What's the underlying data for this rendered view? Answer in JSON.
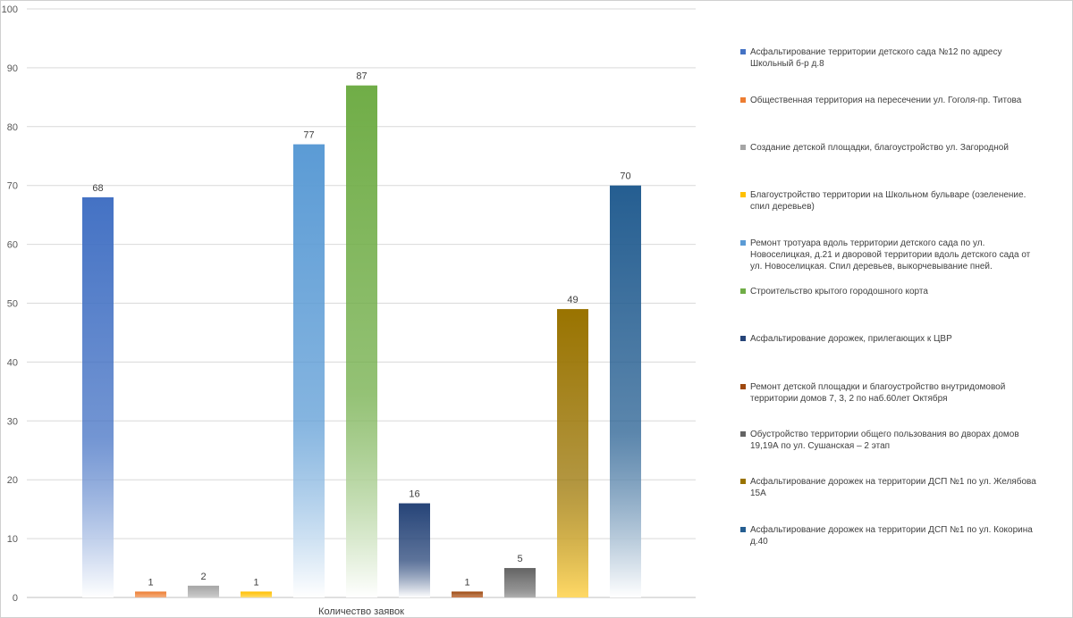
{
  "chart_data": {
    "type": "bar",
    "title": "",
    "xlabel": "Количество заявок",
    "ylabel": "",
    "ylim": [
      0,
      100
    ],
    "y_ticks": [
      0,
      10,
      20,
      30,
      40,
      50,
      60,
      70,
      80,
      90,
      100
    ],
    "grid": true,
    "legend_position": "right",
    "series": [
      {
        "name": "Асфальтирование территории детского сада №12 по адресу Школьный б-р д.8",
        "value": 68,
        "color_top": "#4472c4",
        "color_bottom": "#ffffff"
      },
      {
        "name": "Общественная территория на пересечении ул. Гоголя-пр. Титова",
        "value": 1,
        "color_top": "#ed7d31",
        "color_bottom": "#f4b183"
      },
      {
        "name": "Создание детской площадки, благоустройство ул. Загородной",
        "value": 2,
        "color_top": "#a5a5a5",
        "color_bottom": "#d0d0d0"
      },
      {
        "name": "Благоустройство территории на Школьном бульваре (озеленение. спил деревьев)",
        "value": 1,
        "color_top": "#ffc000",
        "color_bottom": "#ffe07a"
      },
      {
        "name": "Ремонт тротуара вдоль территории детского сада по ул. Новоселицкая, д.21 и дворовой территории вдоль детского сада от ул. Новоселицкая. Спил деревьев, выкорчевывание пней.",
        "value": 77,
        "color_top": "#5b9bd5",
        "color_bottom": "#ffffff"
      },
      {
        "name": "Строительство крытого городошного корта",
        "value": 87,
        "color_top": "#70ad47",
        "color_bottom": "#ffffff"
      },
      {
        "name": "Асфальтирование дорожек, прилегающих к ЦВР",
        "value": 16,
        "color_top": "#264478",
        "color_bottom": "#ffffff"
      },
      {
        "name": "Ремонт детской площадки и благоустройство внутридомовой территории домов 7, 3, 2 по наб.60лет Октября",
        "value": 1,
        "color_top": "#9e480e",
        "color_bottom": "#d08050"
      },
      {
        "name": "Обустройство территории общего пользования во дворах домов 19,19А по ул. Сушанская – 2 этап",
        "value": 5,
        "color_top": "#636363",
        "color_bottom": "#b0b0b0"
      },
      {
        "name": "Асфальтирование дорожек на территории ДСП №1 по ул. Желябова 15А",
        "value": 49,
        "color_top": "#997300",
        "color_bottom": "#ffd966"
      },
      {
        "name": "Асфальтирование дорожек на территории ДСП №1 по ул. Кокорина д.40",
        "value": 70,
        "color_top": "#255e91",
        "color_bottom": "#ffffff"
      }
    ]
  }
}
